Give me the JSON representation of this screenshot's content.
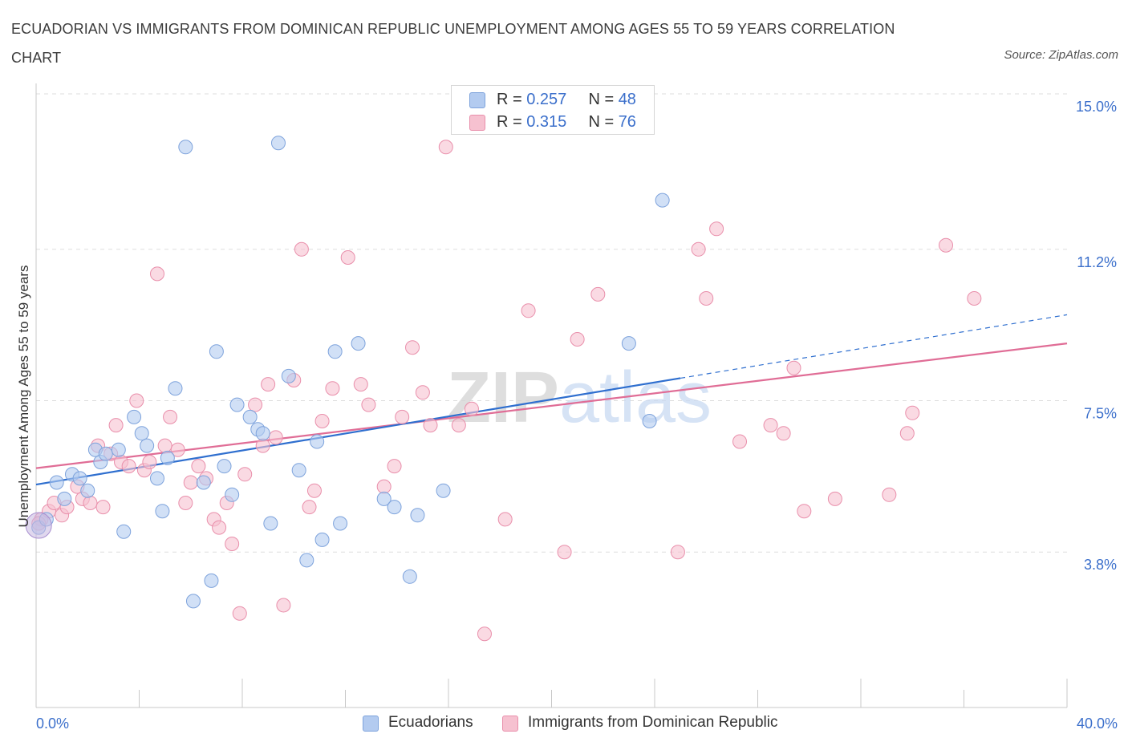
{
  "title": "ECUADORIAN VS IMMIGRANTS FROM DOMINICAN REPUBLIC UNEMPLOYMENT AMONG AGES 55 TO 59 YEARS CORRELATION CHART",
  "source": "Source: ZipAtlas.com",
  "watermark": "ZIPatlas",
  "legend_top": [
    {
      "r_label": "R = ",
      "r_value": "0.257",
      "n_label": "N = ",
      "n_value": "48"
    },
    {
      "r_label": "R = ",
      "r_value": "0.315",
      "n_label": "N = ",
      "n_value": "76"
    }
  ],
  "legend_bottom": [
    "Ecuadorians",
    "Immigrants from Dominican Republic"
  ],
  "chart_data": {
    "type": "scatter",
    "title": "ECUADORIAN VS IMMIGRANTS FROM DOMINICAN REPUBLIC UNEMPLOYMENT AMONG AGES 55 TO 59 YEARS CORRELATION CHART",
    "xlabel": "",
    "ylabel": "Unemployment Among Ages 55 to 59 years",
    "xlim": [
      0,
      40
    ],
    "ylim": [
      0,
      15
    ],
    "x_tick_labels": [
      "0.0%",
      "40.0%"
    ],
    "y_ticks": [
      3.8,
      7.5,
      11.2,
      15.0
    ],
    "y_tick_labels": [
      "3.8%",
      "7.5%",
      "11.2%",
      "15.0%"
    ],
    "grid": true,
    "legend_position": "top-center",
    "colors": {
      "blue_fill": "#b3cbf0",
      "blue_stroke": "#7ea3dc",
      "blue_line": "#2f6fcf",
      "pink_fill": "#f6c1d0",
      "pink_stroke": "#e98fab",
      "pink_line": "#e06d96",
      "tick_text": "#3b6fcb",
      "grid": "#dddddd"
    },
    "series": [
      {
        "name": "Ecuadorians",
        "r": 0.257,
        "n": 48,
        "trend": {
          "x0": 0,
          "y0": 5.45,
          "x1": 25,
          "y1": 8.05,
          "dash_x1": 40,
          "dash_y1": 9.6
        },
        "points": [
          [
            0.1,
            4.4
          ],
          [
            0.4,
            4.6
          ],
          [
            0.8,
            5.5
          ],
          [
            1.1,
            5.1
          ],
          [
            1.4,
            5.7
          ],
          [
            1.7,
            5.6
          ],
          [
            2.0,
            5.3
          ],
          [
            2.3,
            6.3
          ],
          [
            2.5,
            6.0
          ],
          [
            2.7,
            6.2
          ],
          [
            3.2,
            6.3
          ],
          [
            3.4,
            4.3
          ],
          [
            3.8,
            7.1
          ],
          [
            4.1,
            6.7
          ],
          [
            4.3,
            6.4
          ],
          [
            4.7,
            5.6
          ],
          [
            4.9,
            4.8
          ],
          [
            5.1,
            6.1
          ],
          [
            5.4,
            7.8
          ],
          [
            5.8,
            13.7
          ],
          [
            6.1,
            2.6
          ],
          [
            6.5,
            5.5
          ],
          [
            6.8,
            3.1
          ],
          [
            7.0,
            8.7
          ],
          [
            7.3,
            5.9
          ],
          [
            7.6,
            5.2
          ],
          [
            7.8,
            7.4
          ],
          [
            8.3,
            7.1
          ],
          [
            8.6,
            6.8
          ],
          [
            8.8,
            6.7
          ],
          [
            9.1,
            4.5
          ],
          [
            9.4,
            13.8
          ],
          [
            9.8,
            8.1
          ],
          [
            10.2,
            5.8
          ],
          [
            10.5,
            3.6
          ],
          [
            10.9,
            6.5
          ],
          [
            11.1,
            4.1
          ],
          [
            11.6,
            8.7
          ],
          [
            11.8,
            4.5
          ],
          [
            12.5,
            8.9
          ],
          [
            13.5,
            5.1
          ],
          [
            13.9,
            4.9
          ],
          [
            14.5,
            3.2
          ],
          [
            14.8,
            4.7
          ],
          [
            15.8,
            5.3
          ],
          [
            23.0,
            8.9
          ],
          [
            23.8,
            7.0
          ],
          [
            24.3,
            12.4
          ]
        ]
      },
      {
        "name": "Immigrants from Dominican Republic",
        "r": 0.315,
        "n": 76,
        "trend": {
          "x0": 0,
          "y0": 5.85,
          "x1": 40,
          "y1": 8.9
        },
        "points": [
          [
            0.2,
            4.6
          ],
          [
            0.5,
            4.8
          ],
          [
            0.7,
            5.0
          ],
          [
            1.0,
            4.7
          ],
          [
            1.2,
            4.9
          ],
          [
            1.6,
            5.4
          ],
          [
            1.8,
            5.1
          ],
          [
            2.1,
            5.0
          ],
          [
            2.4,
            6.4
          ],
          [
            2.6,
            4.9
          ],
          [
            2.9,
            6.2
          ],
          [
            3.1,
            6.9
          ],
          [
            3.3,
            6.0
          ],
          [
            3.6,
            5.9
          ],
          [
            3.9,
            7.5
          ],
          [
            4.2,
            5.8
          ],
          [
            4.4,
            6.0
          ],
          [
            4.7,
            10.6
          ],
          [
            5.0,
            6.4
          ],
          [
            5.2,
            7.1
          ],
          [
            5.5,
            6.3
          ],
          [
            5.8,
            5.0
          ],
          [
            6.0,
            5.5
          ],
          [
            6.3,
            5.9
          ],
          [
            6.6,
            5.6
          ],
          [
            6.9,
            4.6
          ],
          [
            7.1,
            4.4
          ],
          [
            7.4,
            5.0
          ],
          [
            7.6,
            4.0
          ],
          [
            7.9,
            2.3
          ],
          [
            8.1,
            5.7
          ],
          [
            8.5,
            7.4
          ],
          [
            8.8,
            6.4
          ],
          [
            9.0,
            7.9
          ],
          [
            9.3,
            6.6
          ],
          [
            9.6,
            2.5
          ],
          [
            10.0,
            8.0
          ],
          [
            10.3,
            11.2
          ],
          [
            10.6,
            4.9
          ],
          [
            10.8,
            5.3
          ],
          [
            11.1,
            7.0
          ],
          [
            11.5,
            7.8
          ],
          [
            12.1,
            11.0
          ],
          [
            12.6,
            7.9
          ],
          [
            12.9,
            7.4
          ],
          [
            13.5,
            5.4
          ],
          [
            13.9,
            5.9
          ],
          [
            14.2,
            7.1
          ],
          [
            14.6,
            8.8
          ],
          [
            15.0,
            7.7
          ],
          [
            15.3,
            6.9
          ],
          [
            15.9,
            13.7
          ],
          [
            16.4,
            6.9
          ],
          [
            16.9,
            7.3
          ],
          [
            17.4,
            1.8
          ],
          [
            18.2,
            4.6
          ],
          [
            19.1,
            9.7
          ],
          [
            20.5,
            3.8
          ],
          [
            21.0,
            9.0
          ],
          [
            21.8,
            10.1
          ],
          [
            24.9,
            3.8
          ],
          [
            25.7,
            11.2
          ],
          [
            26.0,
            10.0
          ],
          [
            26.4,
            11.7
          ],
          [
            27.3,
            6.5
          ],
          [
            28.5,
            6.9
          ],
          [
            29.0,
            6.7
          ],
          [
            29.4,
            8.3
          ],
          [
            29.8,
            4.8
          ],
          [
            31.0,
            5.1
          ],
          [
            33.1,
            5.2
          ],
          [
            33.8,
            6.7
          ],
          [
            34.0,
            7.2
          ],
          [
            35.3,
            11.3
          ],
          [
            36.4,
            10.0
          ],
          [
            0.1,
            4.5
          ]
        ]
      }
    ]
  }
}
